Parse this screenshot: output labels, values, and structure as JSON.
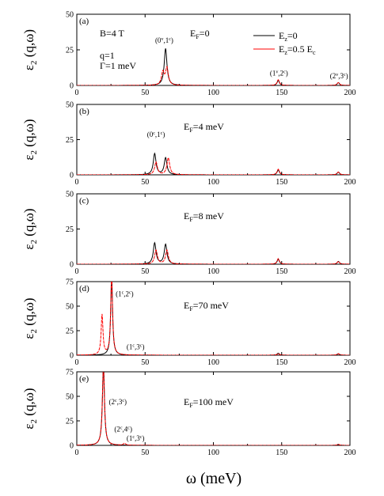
{
  "figure": {
    "xlabel": "ω (meV)",
    "ylabel_main": "ε",
    "ylabel_sub": "2",
    "ylabel_rest": " (q,ω)",
    "legend": [
      {
        "name": "E",
        "sub": "z",
        "suffix": "=0",
        "color": "#000000"
      },
      {
        "name": "E",
        "sub": "z",
        "suffix": "=0.5 E",
        "sub2": "c",
        "color": "#ff0000"
      }
    ],
    "params": [
      "B=4 T",
      "q=1",
      "Γ=1 meV"
    ]
  },
  "chart_data": [
    {
      "type": "line",
      "panel": "(a)",
      "fermi": {
        "pre": "E",
        "sub": "F",
        "post": "=0"
      },
      "xlim": [
        0,
        200
      ],
      "ylim": [
        0,
        50
      ],
      "xticks": [
        0,
        50,
        100,
        150,
        200
      ],
      "yticks": [
        0,
        25,
        50
      ],
      "annotations": [
        {
          "text": "(0",
          "sup": "v",
          "mid": ",1",
          "sup2": "c",
          "end": ")",
          "x": 64,
          "y": 30
        },
        {
          "text": "(1",
          "sup": "v",
          "mid": ",2",
          "sup2": "c",
          "end": ")",
          "x": 148,
          "y": 7
        },
        {
          "text": "(2",
          "sup": "v",
          "mid": ",3",
          "sup2": "c",
          "end": ")",
          "x": 192,
          "y": 5
        }
      ],
      "series": [
        {
          "name": "Ez=0",
          "color": "#000000",
          "peaks": [
            {
              "x": 65,
              "h": 26,
              "w": 1.2
            },
            {
              "x": 147.5,
              "h": 3.5,
              "w": 1
            },
            {
              "x": 191.5,
              "h": 2,
              "w": 1
            }
          ]
        },
        {
          "name": "Ez=0.5 Ec",
          "color": "#ff0000",
          "peaks": [
            {
              "x": 63,
              "h": 9,
              "w": 1.2
            },
            {
              "x": 66,
              "h": 12,
              "w": 1.2
            },
            {
              "x": 147.5,
              "h": 4,
              "w": 1
            },
            {
              "x": 191.5,
              "h": 2,
              "w": 1
            }
          ]
        }
      ]
    },
    {
      "type": "line",
      "panel": "(b)",
      "fermi": {
        "pre": "E",
        "sub": "F",
        "post": "=4 meV"
      },
      "xlim": [
        0,
        200
      ],
      "ylim": [
        0,
        50
      ],
      "xticks": [
        0,
        50,
        100,
        150,
        200
      ],
      "yticks": [
        0,
        25,
        50
      ],
      "annotations": [
        {
          "text": "(0",
          "sup": "c",
          "mid": ",1",
          "sup2": "c",
          "end": ")",
          "x": 58,
          "y": 27
        }
      ],
      "series": [
        {
          "name": "Ez=0",
          "color": "#000000",
          "peaks": [
            {
              "x": 57,
              "h": 15,
              "w": 1.2
            },
            {
              "x": 65,
              "h": 12,
              "w": 1.2
            },
            {
              "x": 147.5,
              "h": 3.5,
              "w": 1
            },
            {
              "x": 191.5,
              "h": 2,
              "w": 1
            }
          ]
        },
        {
          "name": "Ez=0.5 Ec",
          "color": "#ff0000",
          "peaks": [
            {
              "x": 58,
              "h": 9,
              "w": 1.2
            },
            {
              "x": 67,
              "h": 12,
              "w": 1.2
            },
            {
              "x": 147.5,
              "h": 4,
              "w": 1
            },
            {
              "x": 191.5,
              "h": 2,
              "w": 1
            }
          ]
        }
      ]
    },
    {
      "type": "line",
      "panel": "(c)",
      "fermi": {
        "pre": "E",
        "sub": "F",
        "post": "=8 meV"
      },
      "xlim": [
        0,
        200
      ],
      "ylim": [
        0,
        50
      ],
      "xticks": [
        0,
        50,
        100,
        150,
        200
      ],
      "yticks": [
        0,
        25,
        50
      ],
      "annotations": [],
      "series": [
        {
          "name": "Ez=0",
          "color": "#000000",
          "peaks": [
            {
              "x": 57,
              "h": 15,
              "w": 1.2
            },
            {
              "x": 65,
              "h": 14,
              "w": 1.2
            },
            {
              "x": 147.5,
              "h": 3.5,
              "w": 1
            },
            {
              "x": 191.5,
              "h": 2,
              "w": 1
            }
          ]
        },
        {
          "name": "Ez=0.5 Ec",
          "color": "#ff0000",
          "peaks": [
            {
              "x": 58,
              "h": 10,
              "w": 1.2
            },
            {
              "x": 66,
              "h": 10,
              "w": 1.2
            },
            {
              "x": 147.5,
              "h": 4,
              "w": 1
            },
            {
              "x": 191.5,
              "h": 2,
              "w": 1
            }
          ]
        }
      ]
    },
    {
      "type": "line",
      "panel": "(d)",
      "fermi": {
        "pre": "E",
        "sub": "F",
        "post": "=70 meV"
      },
      "xlim": [
        0,
        200
      ],
      "ylim": [
        0,
        75
      ],
      "xticks": [
        0,
        50,
        100,
        150,
        200
      ],
      "yticks": [
        0,
        25,
        50,
        75
      ],
      "annotations": [
        {
          "text": "(1",
          "sup": "c",
          "mid": ",2",
          "sup2": "c",
          "end": ")",
          "x": 35,
          "y": 60
        },
        {
          "text": "(1",
          "sup": "c",
          "mid": ",3",
          "sup2": "c",
          "end": ")",
          "x": 43,
          "y": 6
        }
      ],
      "series": [
        {
          "name": "Ez=0",
          "color": "#000000",
          "peaks": [
            {
              "x": 25.5,
              "h": 81,
              "w": 0.8
            },
            {
              "x": 147.5,
              "h": 2,
              "w": 1
            },
            {
              "x": 191.5,
              "h": 1.5,
              "w": 1
            }
          ]
        },
        {
          "name": "Ez=0.5 Ec",
          "color": "#ff0000",
          "peaks": [
            {
              "x": 18.5,
              "h": 41,
              "w": 0.8
            },
            {
              "x": 25.5,
              "h": 81,
              "w": 0.8
            },
            {
              "x": 147.5,
              "h": 1.5,
              "w": 1
            },
            {
              "x": 191.5,
              "h": 1.5,
              "w": 1
            }
          ]
        }
      ]
    },
    {
      "type": "line",
      "panel": "(e)",
      "fermi": {
        "pre": "E",
        "sub": "F",
        "post": "=100 meV"
      },
      "xlim": [
        0,
        200
      ],
      "ylim": [
        0,
        75
      ],
      "xticks": [
        0,
        50,
        100,
        150,
        200
      ],
      "yticks": [
        0,
        25,
        50,
        75
      ],
      "annotations": [
        {
          "text": "(2",
          "sup": "c",
          "mid": ",3",
          "sup2": "c",
          "end": ")",
          "x": 30,
          "y": 42
        },
        {
          "text": "(2",
          "sup": "c",
          "mid": ",4",
          "sup2": "c",
          "end": ")",
          "x": 34,
          "y": 14
        },
        {
          "text": "(1",
          "sup": "c",
          "mid": ",3",
          "sup2": "c",
          "end": ")",
          "x": 43,
          "y": 5
        }
      ],
      "series": [
        {
          "name": "Ez=0",
          "color": "#000000",
          "peaks": [
            {
              "x": 19.5,
              "h": 82,
              "w": 0.9
            },
            {
              "x": 191.5,
              "h": 1,
              "w": 1
            }
          ]
        },
        {
          "name": "Ez=0.5 Ec",
          "color": "#ff0000",
          "peaks": [
            {
              "x": 19.5,
              "h": 82,
              "w": 0.9
            },
            {
              "x": 35,
              "h": 2,
              "w": 1
            },
            {
              "x": 191.5,
              "h": 1,
              "w": 1
            }
          ]
        }
      ]
    }
  ]
}
